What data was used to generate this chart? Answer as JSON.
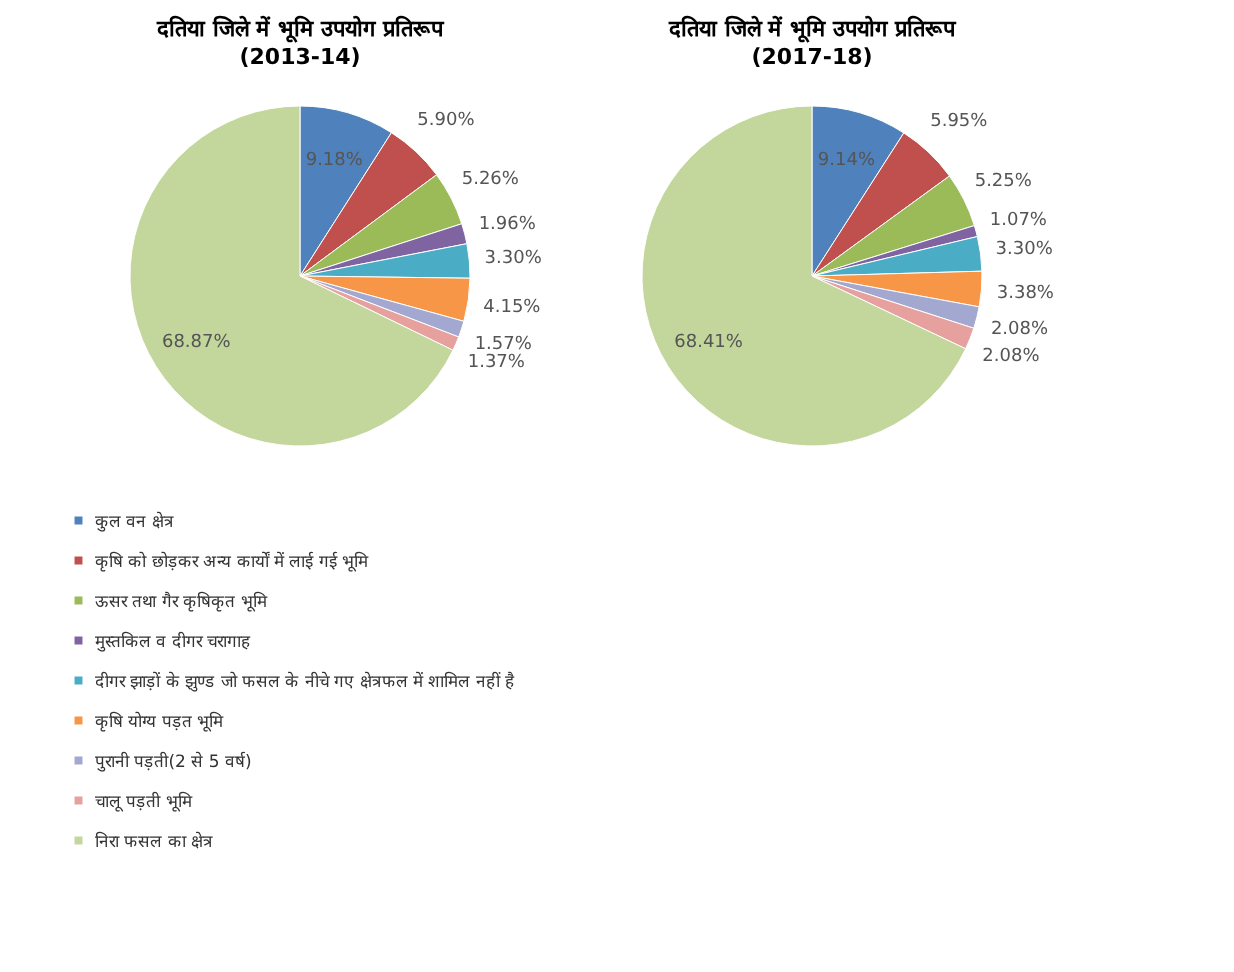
{
  "chart_data": [
    {
      "type": "pie",
      "title": "दतिया जिले में भूमि उपयोग प्रतिरूप",
      "subtitle": "(2013-14)",
      "categories": [
        "कुल वन क्षेत्र",
        "कृषि को छोड़कर अन्य कार्यों में लाई गई भूमि",
        "ऊसर तथा गैर कृषिकृत भूमि",
        "मुस्तकिल व दीगर चरागाह",
        "दीगर झाड़ों के झुण्ड जो फसल के नीचे गए क्षेत्रफल में शामिल नहीं है",
        "कृषि योग्य पड़त भूमि",
        "पुरानी पड़ती(2 से 5 वर्ष)",
        "चालू पड़ती भूमि",
        "निरा फसल का क्षेत्र"
      ],
      "values": [
        9.18,
        5.9,
        5.26,
        1.96,
        3.3,
        4.15,
        1.57,
        1.37,
        68.87
      ],
      "value_labels": [
        "9.18%",
        "5.90%",
        "5.26%",
        "1.96%",
        "3.30%",
        "4.15%",
        "1.57%",
        "1.37%",
        "68.87%"
      ],
      "colors": [
        "#4f81bd",
        "#c0504d",
        "#9bbb59",
        "#8064a2",
        "#4bacc6",
        "#f79646",
        "#a3a8d0",
        "#e6a19f",
        "#c3d69b"
      ],
      "legend": "bottom"
    },
    {
      "type": "pie",
      "title": "दतिया जिले में भूमि उपयोग प्रतिरूप",
      "subtitle": "(2017-18)",
      "values": [
        9.14,
        5.95,
        5.25,
        1.07,
        3.3,
        3.38,
        2.08,
        2.08,
        68.41
      ],
      "value_labels": [
        "9.14%",
        "5.95%",
        "5.25%",
        "1.07%",
        "3.30%",
        "3.38%",
        "2.08%",
        "2.08%",
        "68.41%"
      ],
      "colors": [
        "#4f81bd",
        "#c0504d",
        "#9bbb59",
        "#8064a2",
        "#4bacc6",
        "#f79646",
        "#a3a8d0",
        "#e6a19f",
        "#c3d69b"
      ]
    }
  ]
}
